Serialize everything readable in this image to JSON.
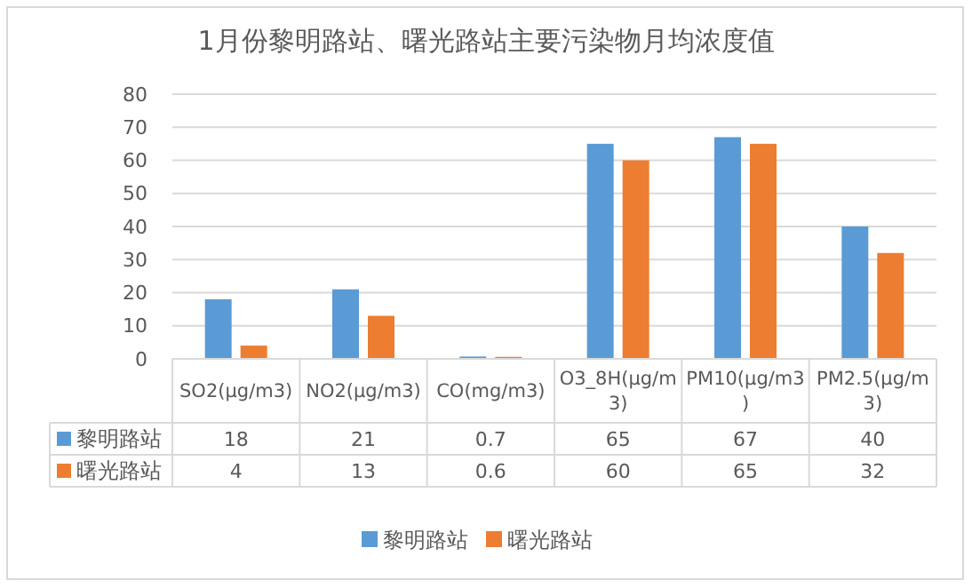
{
  "chart_data": {
    "type": "bar",
    "title": "1月份黎明路站、曙光路站主要污染物月均浓度值",
    "categories": [
      "SO2(μg/m3)",
      "NO2(μg/m3)",
      "CO(mg/m3)",
      "O3_8H(μg/m3)",
      "PM10(μg/m3)",
      "PM2.5(μg/m3)"
    ],
    "series": [
      {
        "name": "黎明路站",
        "color": "#5b9bd5",
        "values": [
          18,
          21,
          0.7,
          65,
          67,
          40
        ]
      },
      {
        "name": "曙光路站",
        "color": "#ed7d31",
        "values": [
          4,
          13,
          0.6,
          60,
          65,
          32
        ]
      }
    ],
    "ylim": [
      0,
      80
    ],
    "yticks": [
      0,
      10,
      20,
      30,
      40,
      50,
      60,
      70,
      80
    ],
    "grid": "y",
    "legend": "bottom",
    "data_labels": true
  }
}
